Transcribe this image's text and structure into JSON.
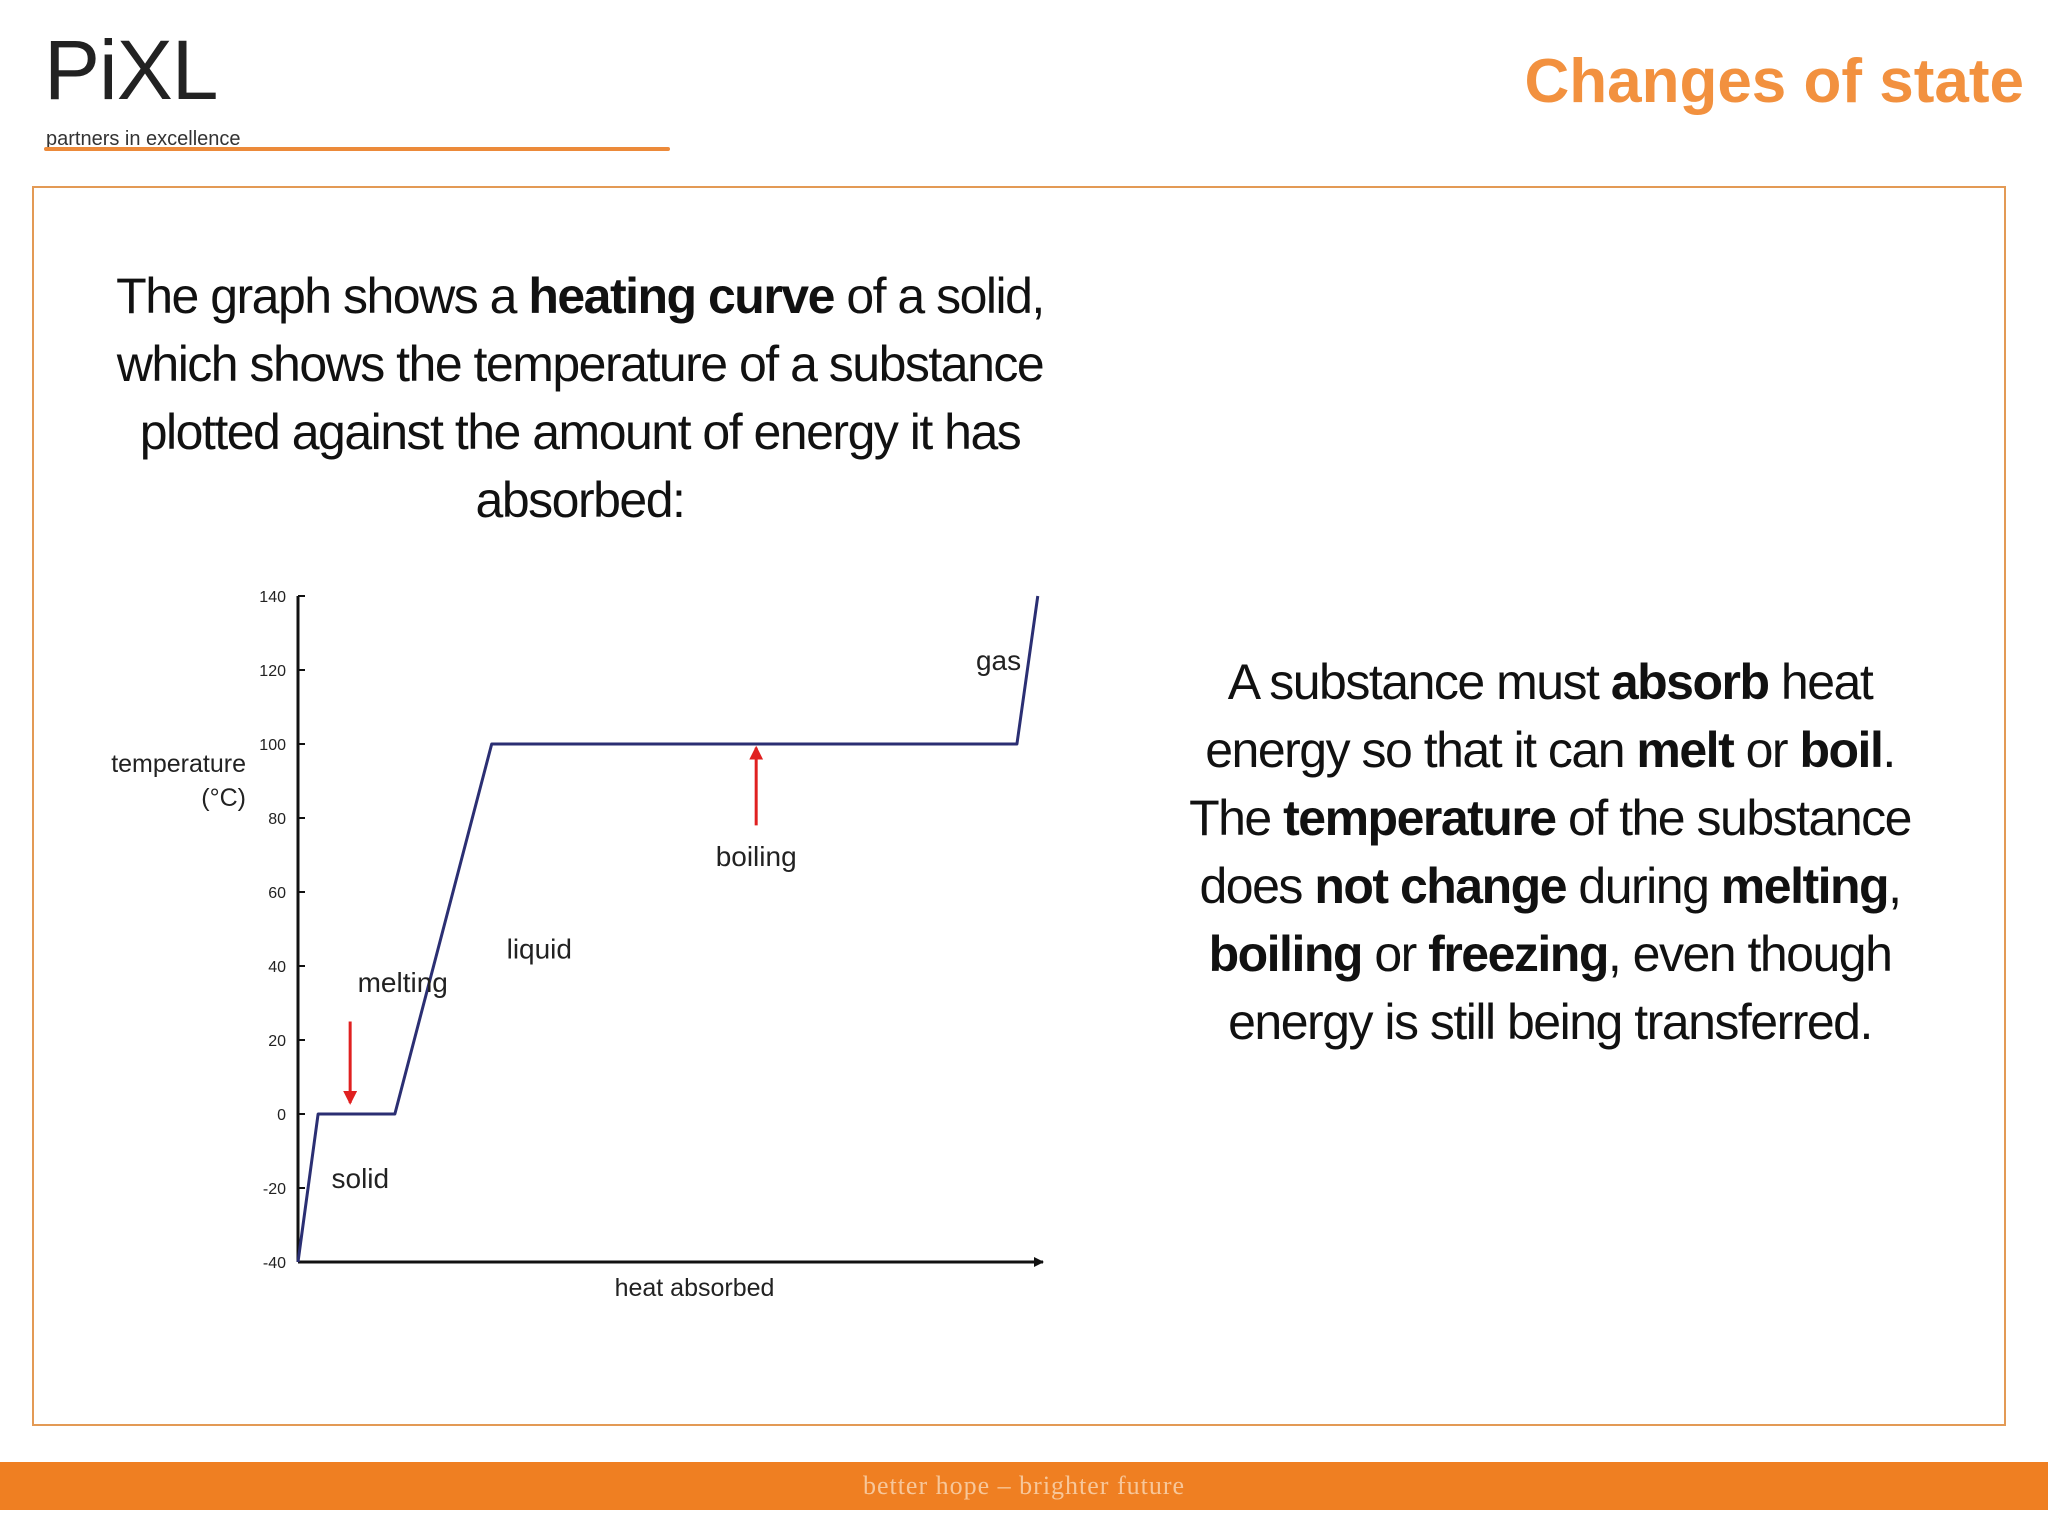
{
  "header": {
    "logo_word": "PiXL",
    "logo_tagline": "partners in excellence",
    "title": "Changes of state"
  },
  "intro": {
    "part1": "The graph shows a ",
    "bold1": "heating curve",
    "part2": " of a solid, which shows the temperature of a substance plotted against the amount of energy it has absorbed:"
  },
  "explanation": {
    "p1": "A substance must ",
    "b1": "absorb",
    "p2": " heat energy so that it can ",
    "b2": "melt",
    "p3": " or ",
    "b3": "boil",
    "p4": ". The ",
    "b4": "temperature",
    "p5": " of the substance does ",
    "b5": "not change",
    "p6": " during ",
    "b6": "melting",
    "p7": ", ",
    "b7": "boiling",
    "p8": " or ",
    "b8": "freezing",
    "p9": ", even though energy is still being transferred."
  },
  "chart_data": {
    "type": "line",
    "title": "",
    "ylabel_line1": "temperature",
    "ylabel_line2": "(°C)",
    "xlabel": "heat absorbed",
    "ylim": [
      -40,
      140
    ],
    "xlim": [
      0,
      100
    ],
    "yticks": [
      -40,
      -20,
      0,
      20,
      40,
      60,
      80,
      100,
      120,
      140
    ],
    "series": [
      {
        "x": [
          0,
          2.7,
          13,
          26,
          96.5,
          99.3
        ],
        "y": [
          -40,
          0,
          0,
          100,
          100,
          140
        ]
      }
    ],
    "annotations": [
      {
        "text": "solid",
        "x": 4.5,
        "y": -20
      },
      {
        "text": "melting",
        "x": 8,
        "y": 33,
        "arrow_to": [
          7,
          3
        ],
        "arrow_from": [
          7,
          25
        ]
      },
      {
        "text": "liquid",
        "x": 28,
        "y": 42
      },
      {
        "text": "boiling",
        "x": 61.5,
        "y": 67,
        "arrow_to": [
          61.5,
          99
        ],
        "arrow_from": [
          61.5,
          78
        ]
      },
      {
        "text": "gas",
        "x": 91,
        "y": 120
      }
    ],
    "colors": {
      "line": "#2b2f73",
      "arrow": "#e02020",
      "axis": "#111111"
    }
  },
  "footer": {
    "text": "better hope – brighter future"
  }
}
